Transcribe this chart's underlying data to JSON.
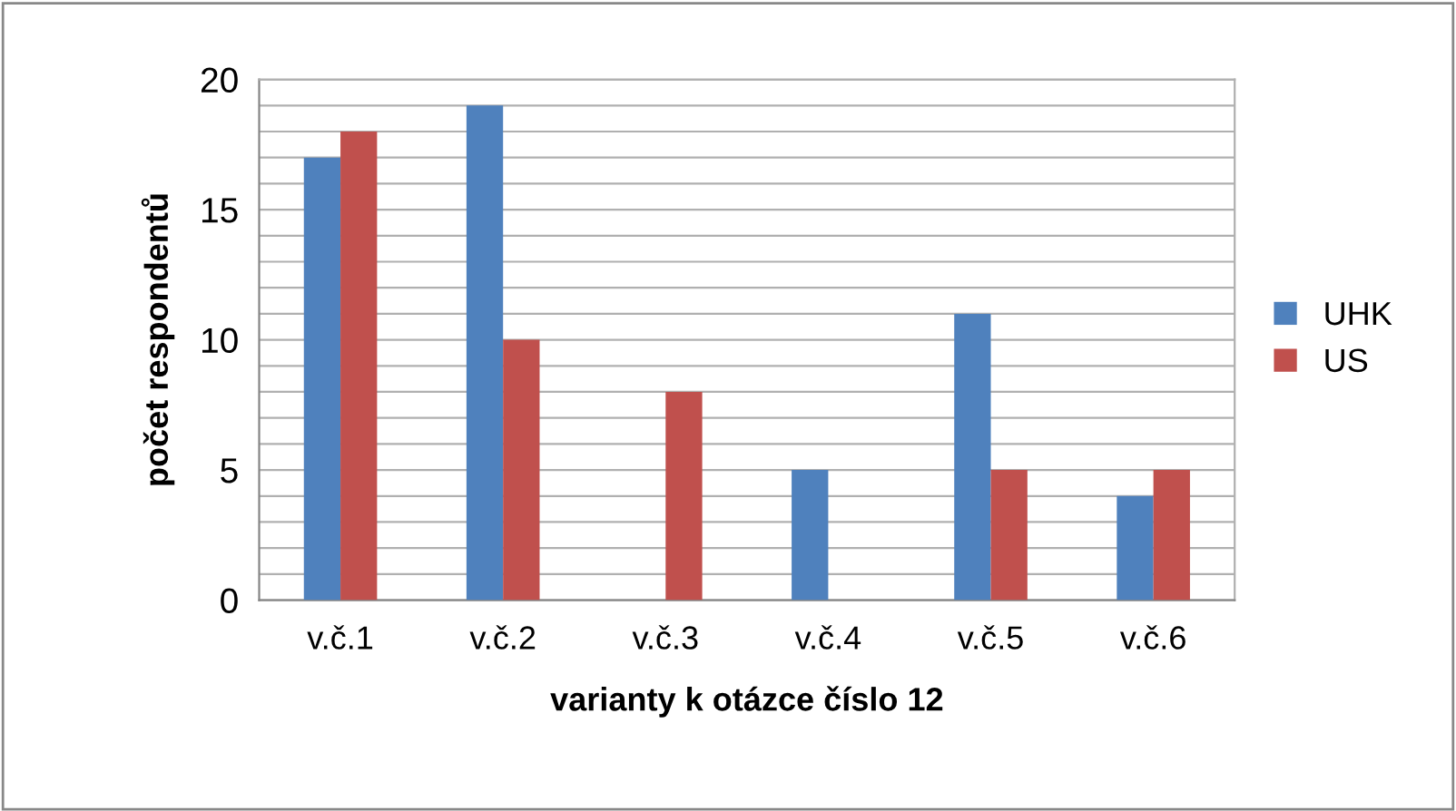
{
  "chart_data": {
    "type": "bar",
    "xlabel": "varianty k otázce číslo 12",
    "ylabel": "počet respondentů",
    "categories": [
      "v.č.1",
      "v.č.2",
      "v.č.3",
      "v.č.4",
      "v.č.5",
      "v.č.6"
    ],
    "series": [
      {
        "name": "UHK",
        "color": "#4f81bd",
        "values": [
          17,
          19,
          0,
          5,
          11,
          4
        ]
      },
      {
        "name": "US",
        "color": "#c0504d",
        "values": [
          18,
          10,
          8,
          0,
          5,
          5
        ]
      }
    ],
    "ylim": [
      0,
      20
    ],
    "yticks": [
      0,
      {
        "value": 1,
        "label": null
      },
      {
        "value": 2,
        "label": null
      },
      {
        "value": 3,
        "label": null
      },
      {
        "value": 4,
        "label": null
      },
      5,
      {
        "value": 6,
        "label": null
      },
      {
        "value": 7,
        "label": null
      },
      {
        "value": 8,
        "label": null
      },
      {
        "value": 9,
        "label": null
      },
      10,
      {
        "value": 11,
        "label": null
      },
      {
        "value": 12,
        "label": null
      },
      {
        "value": 13,
        "label": null
      },
      {
        "value": 14,
        "label": null
      },
      15,
      {
        "value": 16,
        "label": null
      },
      {
        "value": 17,
        "label": null
      },
      {
        "value": 18,
        "label": null
      },
      {
        "value": 19,
        "label": null
      },
      20
    ],
    "grid": "y",
    "legend": "right"
  }
}
